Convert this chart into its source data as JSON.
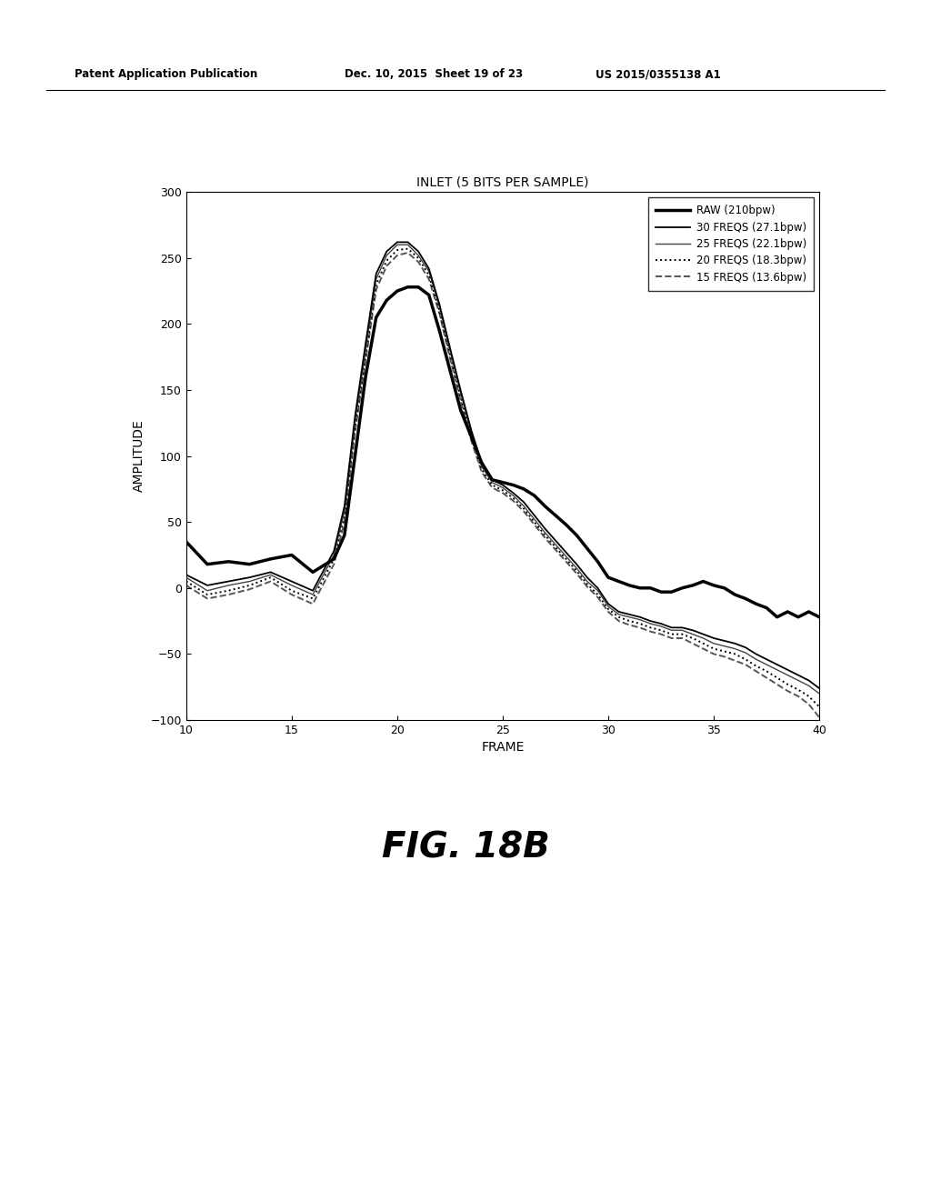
{
  "title": "INLET (5 BITS PER SAMPLE)",
  "xlabel": "FRAME",
  "ylabel": "AMPLITUDE",
  "xlim": [
    10,
    40
  ],
  "ylim": [
    -100,
    300
  ],
  "xticks": [
    10,
    15,
    20,
    25,
    30,
    35,
    40
  ],
  "yticks": [
    -100,
    -50,
    0,
    50,
    100,
    150,
    200,
    250,
    300
  ],
  "header_left": "Patent Application Publication",
  "header_mid": "Dec. 10, 2015  Sheet 19 of 23",
  "header_right": "US 2015/0355138 A1",
  "fig_label": "FIG. 18B",
  "raw_x": [
    10,
    11,
    12,
    13,
    14,
    15,
    16,
    17,
    17.5,
    18,
    18.5,
    19,
    19.5,
    20,
    20.5,
    21,
    21.5,
    22,
    22.5,
    23,
    23.5,
    24,
    24.5,
    25,
    25.5,
    26,
    26.5,
    27,
    27.5,
    28,
    28.5,
    29,
    29.5,
    30,
    30.5,
    31,
    31.5,
    32,
    32.5,
    33,
    33.5,
    34,
    34.5,
    35,
    35.5,
    36,
    36.5,
    37,
    37.5,
    38,
    38.5,
    39,
    39.5,
    40
  ],
  "raw_y": [
    35,
    18,
    20,
    18,
    22,
    25,
    12,
    22,
    40,
    100,
    160,
    205,
    218,
    225,
    228,
    228,
    222,
    195,
    165,
    135,
    115,
    95,
    82,
    80,
    78,
    75,
    70,
    62,
    55,
    48,
    40,
    30,
    20,
    8,
    5,
    2,
    0,
    0,
    -3,
    -3,
    0,
    2,
    5,
    2,
    0,
    -5,
    -8,
    -12,
    -15,
    -22,
    -18,
    -22,
    -18,
    -22
  ],
  "freq30_x": [
    10,
    11,
    12,
    13,
    14,
    15,
    16,
    17,
    17.5,
    18,
    18.5,
    19,
    19.5,
    20,
    20.5,
    21,
    21.5,
    22,
    22.5,
    23,
    23.5,
    24,
    24.5,
    25,
    25.5,
    26,
    26.5,
    27,
    27.5,
    28,
    28.5,
    29,
    29.5,
    30,
    30.5,
    31,
    31.5,
    32,
    32.5,
    33,
    33.5,
    34,
    34.5,
    35,
    35.5,
    36,
    36.5,
    37,
    37.5,
    38,
    38.5,
    39,
    39.5,
    40
  ],
  "freq30_y": [
    10,
    2,
    5,
    8,
    12,
    5,
    -2,
    28,
    62,
    130,
    185,
    238,
    255,
    262,
    262,
    255,
    242,
    215,
    182,
    150,
    120,
    95,
    82,
    78,
    72,
    65,
    55,
    45,
    36,
    27,
    18,
    8,
    0,
    -12,
    -18,
    -20,
    -22,
    -25,
    -27,
    -30,
    -30,
    -32,
    -35,
    -38,
    -40,
    -42,
    -45,
    -50,
    -54,
    -58,
    -62,
    -66,
    -70,
    -76
  ],
  "freq25_x": [
    10,
    11,
    12,
    13,
    14,
    15,
    16,
    17,
    17.5,
    18,
    18.5,
    19,
    19.5,
    20,
    20.5,
    21,
    21.5,
    22,
    22.5,
    23,
    23.5,
    24,
    24.5,
    25,
    25.5,
    26,
    26.5,
    27,
    27.5,
    28,
    28.5,
    29,
    29.5,
    30,
    30.5,
    31,
    31.5,
    32,
    32.5,
    33,
    33.5,
    34,
    34.5,
    35,
    35.5,
    36,
    36.5,
    37,
    37.5,
    38,
    38.5,
    39,
    39.5,
    40
  ],
  "freq25_y": [
    8,
    -2,
    2,
    5,
    10,
    2,
    -5,
    25,
    58,
    126,
    180,
    234,
    252,
    260,
    260,
    252,
    240,
    213,
    180,
    148,
    118,
    92,
    80,
    76,
    70,
    62,
    52,
    42,
    33,
    24,
    15,
    5,
    -2,
    -14,
    -20,
    -22,
    -24,
    -27,
    -29,
    -32,
    -32,
    -35,
    -38,
    -42,
    -44,
    -46,
    -49,
    -54,
    -58,
    -62,
    -66,
    -70,
    -74,
    -80
  ],
  "freq20_x": [
    10,
    11,
    12,
    13,
    14,
    15,
    16,
    17,
    17.5,
    18,
    18.5,
    19,
    19.5,
    20,
    20.5,
    21,
    21.5,
    22,
    22.5,
    23,
    23.5,
    24,
    24.5,
    25,
    25.5,
    26,
    26.5,
    27,
    27.5,
    28,
    28.5,
    29,
    29.5,
    30,
    30.5,
    31,
    31.5,
    32,
    32.5,
    33,
    33.5,
    34,
    34.5,
    35,
    35.5,
    36,
    36.5,
    37,
    37.5,
    38,
    38.5,
    39,
    39.5,
    40
  ],
  "freq20_y": [
    5,
    -5,
    -2,
    2,
    8,
    -2,
    -8,
    22,
    55,
    122,
    176,
    230,
    248,
    256,
    257,
    250,
    237,
    210,
    177,
    145,
    115,
    90,
    78,
    74,
    68,
    60,
    50,
    40,
    31,
    22,
    13,
    3,
    -5,
    -16,
    -22,
    -25,
    -27,
    -30,
    -32,
    -35,
    -35,
    -38,
    -42,
    -46,
    -48,
    -50,
    -54,
    -59,
    -63,
    -68,
    -73,
    -77,
    -82,
    -90
  ],
  "freq15_x": [
    10,
    11,
    12,
    13,
    14,
    15,
    16,
    17,
    17.5,
    18,
    18.5,
    19,
    19.5,
    20,
    20.5,
    21,
    21.5,
    22,
    22.5,
    23,
    23.5,
    24,
    24.5,
    25,
    25.5,
    26,
    26.5,
    27,
    27.5,
    28,
    28.5,
    29,
    29.5,
    30,
    30.5,
    31,
    31.5,
    32,
    32.5,
    33,
    33.5,
    34,
    34.5,
    35,
    35.5,
    36,
    36.5,
    37,
    37.5,
    38,
    38.5,
    39,
    39.5,
    40
  ],
  "freq15_y": [
    2,
    -8,
    -5,
    -1,
    5,
    -5,
    -12,
    18,
    50,
    118,
    172,
    226,
    244,
    252,
    254,
    247,
    234,
    208,
    174,
    142,
    112,
    88,
    76,
    72,
    66,
    58,
    48,
    38,
    29,
    20,
    11,
    1,
    -7,
    -18,
    -25,
    -28,
    -30,
    -33,
    -35,
    -38,
    -38,
    -42,
    -46,
    -50,
    -52,
    -55,
    -58,
    -63,
    -68,
    -73,
    -78,
    -82,
    -88,
    -98
  ]
}
